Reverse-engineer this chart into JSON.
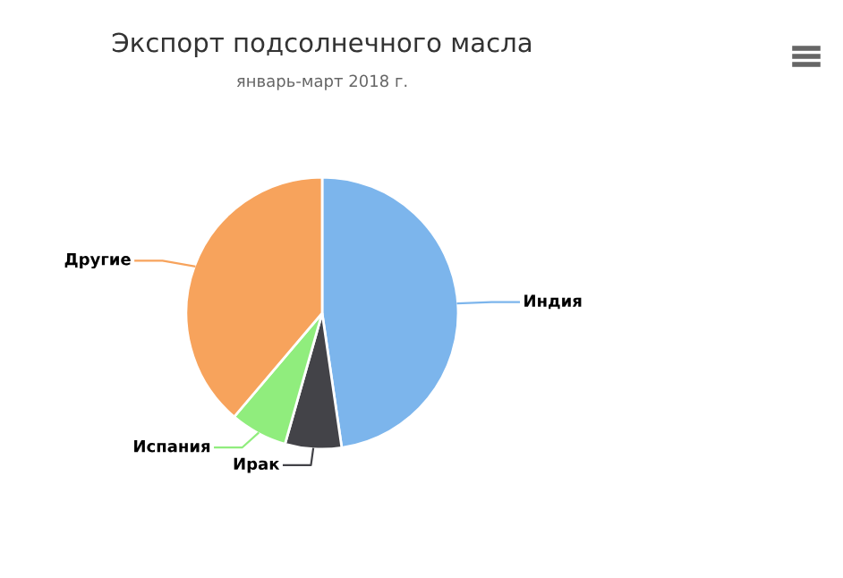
{
  "chart_data": {
    "type": "pie",
    "title": "Экспорт подсолнечного масла",
    "subtitle": "январь-март 2018 г.",
    "categories": [
      "Индия",
      "Ирак",
      "Испания",
      "Другие"
    ],
    "values": [
      47.7,
      6.7,
      6.8,
      38.8
    ],
    "colors": [
      "#7cb5ec",
      "#434348",
      "#90ed7d",
      "#f7a35c"
    ],
    "legend": false
  }
}
